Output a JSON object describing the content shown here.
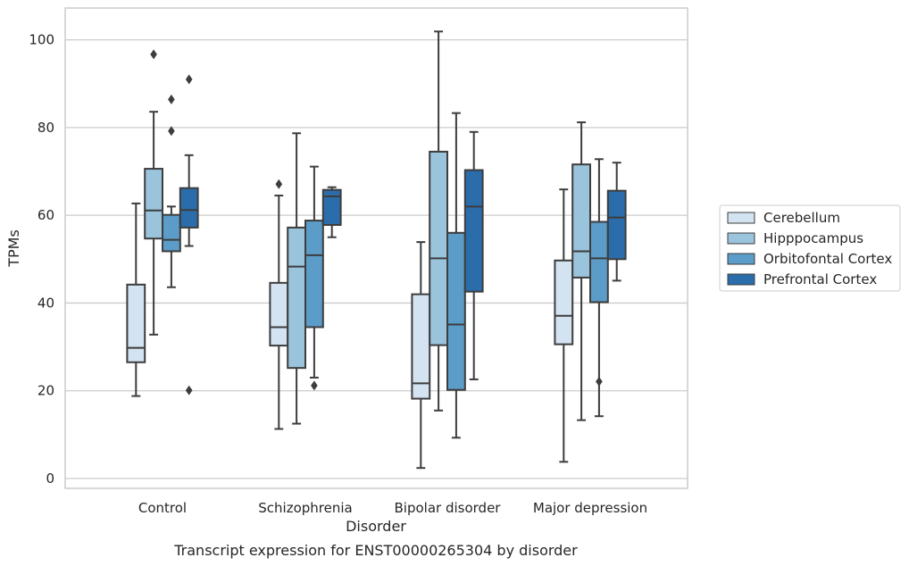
{
  "chart_data": {
    "type": "box",
    "xlabel": "Disorder",
    "ylabel": "TPMs",
    "caption": "Transcript expression for ENST00000265304 by disorder",
    "ylim": [
      -2.5,
      107
    ],
    "yticks": [
      "0",
      "20",
      "40",
      "60",
      "80",
      "100"
    ],
    "grid": "horizontal",
    "legend_position": "right",
    "categories": [
      "Control",
      "Schizophrenia",
      "Bipolar disorder",
      "Major depression"
    ],
    "series": [
      {
        "name": "Cerebellum",
        "color": "#d3e3f1",
        "boxes": [
          {
            "whisker_low": 18.8,
            "q1": 26.5,
            "median": 29.8,
            "q3": 44.2,
            "whisker_high": 62.7,
            "outliers": []
          },
          {
            "whisker_low": 11.3,
            "q1": 30.3,
            "median": 34.5,
            "q3": 44.6,
            "whisker_high": 64.5,
            "outliers": [
              67.1
            ]
          },
          {
            "whisker_low": 2.4,
            "q1": 18.2,
            "median": 21.7,
            "q3": 42.0,
            "whisker_high": 53.9,
            "outliers": []
          },
          {
            "whisker_low": 3.8,
            "q1": 30.6,
            "median": 37.1,
            "q3": 49.7,
            "whisker_high": 65.9,
            "outliers": []
          }
        ]
      },
      {
        "name": "Hipppocampus",
        "color": "#9ac3dc",
        "boxes": [
          {
            "whisker_low": 32.8,
            "q1": 54.7,
            "median": 61.1,
            "q3": 70.6,
            "whisker_high": 83.6,
            "outliers": [
              96.7
            ]
          },
          {
            "whisker_low": 12.5,
            "q1": 25.2,
            "median": 48.3,
            "q3": 57.2,
            "whisker_high": 78.7,
            "outliers": []
          },
          {
            "whisker_low": 15.5,
            "q1": 30.4,
            "median": 50.2,
            "q3": 74.5,
            "whisker_high": 101.9,
            "outliers": []
          },
          {
            "whisker_low": 13.3,
            "q1": 45.8,
            "median": 51.8,
            "q3": 71.6,
            "whisker_high": 81.2,
            "outliers": []
          }
        ]
      },
      {
        "name": "Orbitofontal Cortex",
        "color": "#5b9cc8",
        "boxes": [
          {
            "whisker_low": 43.6,
            "q1": 51.8,
            "median": 54.4,
            "q3": 60.1,
            "whisker_high": 62.0,
            "outliers": [
              79.2,
              86.4
            ]
          },
          {
            "whisker_low": 23.0,
            "q1": 34.5,
            "median": 50.9,
            "q3": 58.8,
            "whisker_high": 71.1,
            "outliers": [
              21.2
            ]
          },
          {
            "whisker_low": 9.3,
            "q1": 20.2,
            "median": 35.1,
            "q3": 56.0,
            "whisker_high": 83.3,
            "outliers": []
          },
          {
            "whisker_low": 14.2,
            "q1": 40.2,
            "median": 50.2,
            "q3": 58.5,
            "whisker_high": 72.8,
            "outliers": [
              22.1
            ]
          }
        ]
      },
      {
        "name": "Prefrontal Cortex",
        "color": "#2b6dab",
        "boxes": [
          {
            "whisker_low": 53.0,
            "q1": 57.2,
            "median": 61.2,
            "q3": 66.2,
            "whisker_high": 73.7,
            "outliers": [
              20.1,
              91.0
            ]
          },
          {
            "whisker_low": 55.0,
            "q1": 57.8,
            "median": 64.3,
            "q3": 65.8,
            "whisker_high": 66.4,
            "outliers": []
          },
          {
            "whisker_low": 22.6,
            "q1": 42.6,
            "median": 62.0,
            "q3": 70.3,
            "whisker_high": 79.0,
            "outliers": []
          },
          {
            "whisker_low": 45.1,
            "q1": 50.0,
            "median": 59.5,
            "q3": 65.6,
            "whisker_high": 72.0,
            "outliers": []
          }
        ]
      }
    ]
  }
}
